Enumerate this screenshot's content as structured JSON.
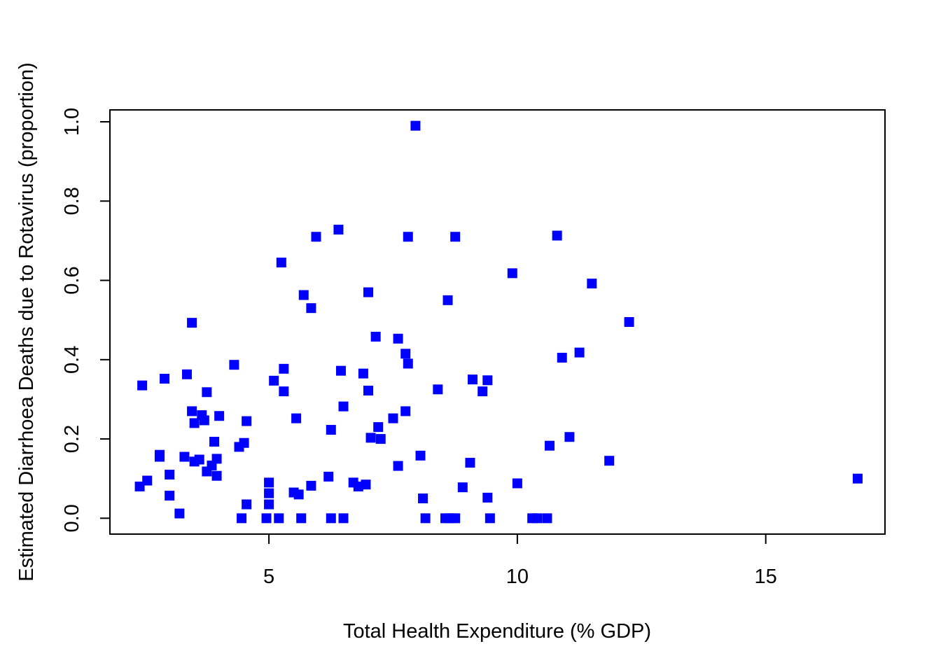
{
  "chart_data": {
    "type": "scatter",
    "title": "",
    "xlabel": "Total Health Expenditure (% GDP)",
    "ylabel": "Estimated Diarrhoea Deaths due to Rotavirus (proportion)",
    "xlim": [
      1.8,
      17.4
    ],
    "ylim": [
      -0.04,
      1.03
    ],
    "x_ticks": [
      5,
      10,
      15
    ],
    "x_tick_labels": [
      "5",
      "10",
      "15"
    ],
    "y_ticks": [
      0.0,
      0.2,
      0.4,
      0.6,
      0.8,
      1.0
    ],
    "y_tick_labels": [
      "0.0",
      "0.2",
      "0.4",
      "0.6",
      "0.8",
      "1.0"
    ],
    "grid": false,
    "marker": "square",
    "point_color": "#0000FF",
    "points": [
      {
        "x": 2.4,
        "y": 0.08
      },
      {
        "x": 2.55,
        "y": 0.095
      },
      {
        "x": 2.45,
        "y": 0.335
      },
      {
        "x": 2.8,
        "y": 0.16
      },
      {
        "x": 2.8,
        "y": 0.155
      },
      {
        "x": 2.9,
        "y": 0.352
      },
      {
        "x": 3.0,
        "y": 0.11
      },
      {
        "x": 3.0,
        "y": 0.057
      },
      {
        "x": 3.2,
        "y": 0.012
      },
      {
        "x": 3.3,
        "y": 0.155
      },
      {
        "x": 3.35,
        "y": 0.363
      },
      {
        "x": 3.45,
        "y": 0.493
      },
      {
        "x": 3.45,
        "y": 0.27
      },
      {
        "x": 3.5,
        "y": 0.24
      },
      {
        "x": 3.5,
        "y": 0.143
      },
      {
        "x": 3.6,
        "y": 0.148
      },
      {
        "x": 3.65,
        "y": 0.26
      },
      {
        "x": 3.7,
        "y": 0.247
      },
      {
        "x": 3.75,
        "y": 0.318
      },
      {
        "x": 3.75,
        "y": 0.118
      },
      {
        "x": 3.85,
        "y": 0.133
      },
      {
        "x": 3.9,
        "y": 0.193
      },
      {
        "x": 3.95,
        "y": 0.15
      },
      {
        "x": 3.95,
        "y": 0.107
      },
      {
        "x": 4.0,
        "y": 0.258
      },
      {
        "x": 4.3,
        "y": 0.387
      },
      {
        "x": 4.4,
        "y": 0.18
      },
      {
        "x": 4.45,
        "y": 0.0
      },
      {
        "x": 4.5,
        "y": 0.19
      },
      {
        "x": 4.55,
        "y": 0.245
      },
      {
        "x": 4.55,
        "y": 0.035
      },
      {
        "x": 4.95,
        "y": 0.0
      },
      {
        "x": 5.0,
        "y": 0.09
      },
      {
        "x": 5.0,
        "y": 0.063
      },
      {
        "x": 5.0,
        "y": 0.035
      },
      {
        "x": 5.1,
        "y": 0.347
      },
      {
        "x": 5.2,
        "y": 0.0
      },
      {
        "x": 5.25,
        "y": 0.645
      },
      {
        "x": 5.3,
        "y": 0.377
      },
      {
        "x": 5.3,
        "y": 0.32
      },
      {
        "x": 5.5,
        "y": 0.065
      },
      {
        "x": 5.55,
        "y": 0.252
      },
      {
        "x": 5.6,
        "y": 0.06
      },
      {
        "x": 5.65,
        "y": 0.0
      },
      {
        "x": 5.7,
        "y": 0.563
      },
      {
        "x": 5.85,
        "y": 0.53
      },
      {
        "x": 5.85,
        "y": 0.082
      },
      {
        "x": 5.95,
        "y": 0.71
      },
      {
        "x": 6.2,
        "y": 0.105
      },
      {
        "x": 6.25,
        "y": 0.223
      },
      {
        "x": 6.25,
        "y": 0.0
      },
      {
        "x": 6.4,
        "y": 0.728
      },
      {
        "x": 6.45,
        "y": 0.372
      },
      {
        "x": 6.5,
        "y": 0.282
      },
      {
        "x": 6.5,
        "y": 0.0
      },
      {
        "x": 6.7,
        "y": 0.09
      },
      {
        "x": 6.8,
        "y": 0.08
      },
      {
        "x": 6.9,
        "y": 0.365
      },
      {
        "x": 6.95,
        "y": 0.085
      },
      {
        "x": 7.0,
        "y": 0.57
      },
      {
        "x": 7.0,
        "y": 0.322
      },
      {
        "x": 7.05,
        "y": 0.203
      },
      {
        "x": 7.15,
        "y": 0.458
      },
      {
        "x": 7.2,
        "y": 0.23
      },
      {
        "x": 7.25,
        "y": 0.2
      },
      {
        "x": 7.5,
        "y": 0.252
      },
      {
        "x": 7.6,
        "y": 0.453
      },
      {
        "x": 7.6,
        "y": 0.132
      },
      {
        "x": 7.75,
        "y": 0.415
      },
      {
        "x": 7.75,
        "y": 0.27
      },
      {
        "x": 7.8,
        "y": 0.39
      },
      {
        "x": 7.8,
        "y": 0.71
      },
      {
        "x": 7.95,
        "y": 0.99
      },
      {
        "x": 8.05,
        "y": 0.158
      },
      {
        "x": 8.1,
        "y": 0.05
      },
      {
        "x": 8.15,
        "y": 0.0
      },
      {
        "x": 8.4,
        "y": 0.325
      },
      {
        "x": 8.55,
        "y": 0.0
      },
      {
        "x": 8.6,
        "y": 0.55
      },
      {
        "x": 8.65,
        "y": 0.0
      },
      {
        "x": 8.75,
        "y": 0.0
      },
      {
        "x": 8.75,
        "y": 0.71
      },
      {
        "x": 8.9,
        "y": 0.078
      },
      {
        "x": 9.05,
        "y": 0.14
      },
      {
        "x": 9.1,
        "y": 0.35
      },
      {
        "x": 9.3,
        "y": 0.32
      },
      {
        "x": 9.4,
        "y": 0.348
      },
      {
        "x": 9.4,
        "y": 0.052
      },
      {
        "x": 9.45,
        "y": 0.0
      },
      {
        "x": 9.9,
        "y": 0.618
      },
      {
        "x": 10.0,
        "y": 0.088
      },
      {
        "x": 10.3,
        "y": 0.0
      },
      {
        "x": 10.4,
        "y": 0.0
      },
      {
        "x": 10.6,
        "y": 0.0
      },
      {
        "x": 10.65,
        "y": 0.183
      },
      {
        "x": 10.8,
        "y": 0.713
      },
      {
        "x": 10.9,
        "y": 0.405
      },
      {
        "x": 11.05,
        "y": 0.205
      },
      {
        "x": 11.25,
        "y": 0.418
      },
      {
        "x": 11.5,
        "y": 0.592
      },
      {
        "x": 11.85,
        "y": 0.145
      },
      {
        "x": 12.25,
        "y": 0.495
      },
      {
        "x": 16.85,
        "y": 0.1
      }
    ]
  }
}
